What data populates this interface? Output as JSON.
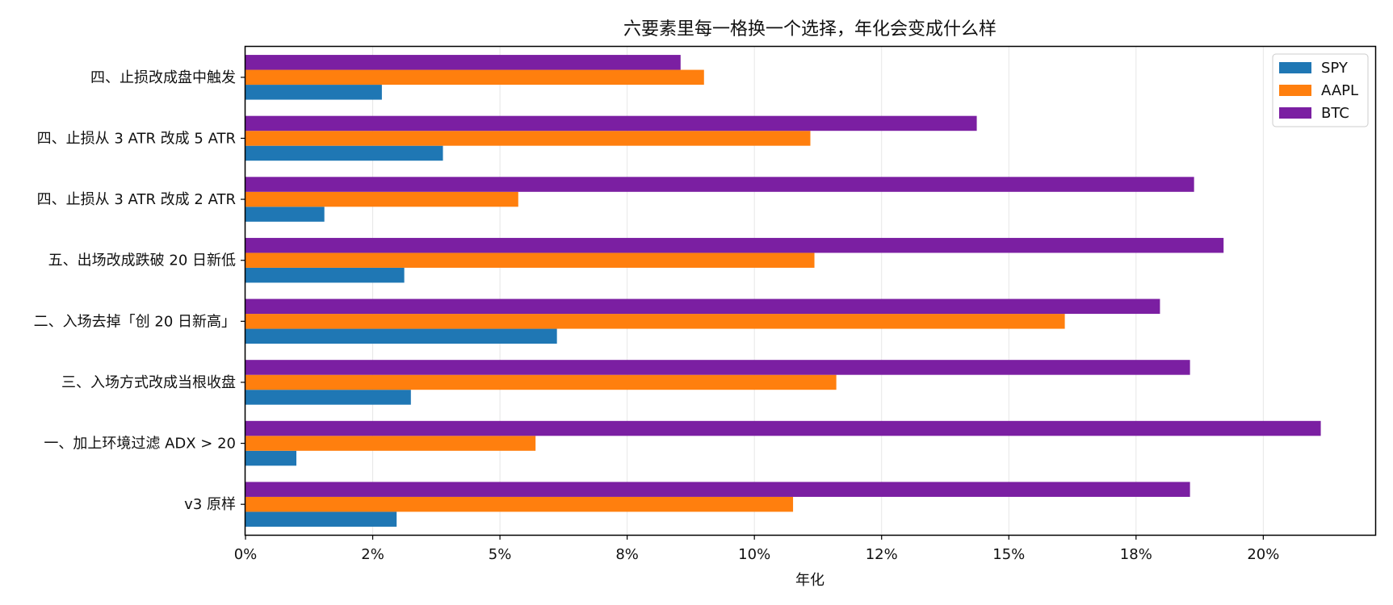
{
  "chart_data": {
    "type": "bar",
    "orientation": "horizontal",
    "title": "六要素里每一格换一个选择，年化会变成什么样",
    "xlabel": "年化",
    "ylabel": "",
    "x_ticks": [
      0,
      0.025,
      0.05,
      0.075,
      0.1,
      0.125,
      0.15,
      0.175,
      0.2
    ],
    "x_tick_labels": [
      "0%",
      "2%",
      "5%",
      "8%",
      "10%",
      "12%",
      "15%",
      "18%",
      "20%"
    ],
    "xlim": [
      0,
      0.222
    ],
    "grid": "x",
    "legend_position": "top-right",
    "categories": [
      "v3 原样",
      "一、加上环境过滤 ADX > 20",
      "三、入场方式改成当根收盘",
      "二、入场去掉「创 20 日新高」",
      "五、出场改成跌破 20 日新低",
      "四、止损从 3 ATR 改成 2 ATR",
      "四、止损从 3 ATR 改成 5 ATR",
      "四、止损改成盘中触发"
    ],
    "series": [
      {
        "name": "SPY",
        "color": "#1f77b4",
        "values": [
          0.0297,
          0.01,
          0.0325,
          0.0612,
          0.0312,
          0.0155,
          0.0388,
          0.0268
        ]
      },
      {
        "name": "AAPL",
        "color": "#ff7f0e",
        "values": [
          0.1076,
          0.057,
          0.1161,
          0.161,
          0.1118,
          0.0536,
          0.111,
          0.0901
        ]
      },
      {
        "name": "BTC",
        "color": "#7b1fa2",
        "values": [
          0.1856,
          0.2113,
          0.1856,
          0.1797,
          0.1922,
          0.1864,
          0.1437,
          0.0855
        ]
      }
    ]
  }
}
